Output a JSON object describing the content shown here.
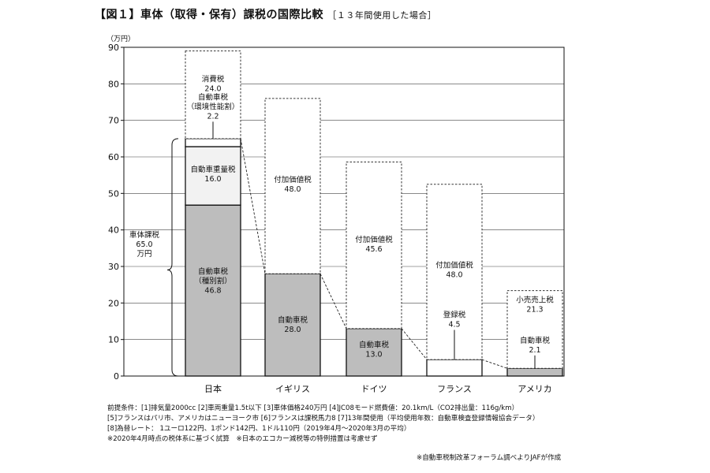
{
  "title": {
    "main": "【図１】車体（取得・保有）課税の国際比較",
    "sub": "［１３年間使用した場合］"
  },
  "chart_data": {
    "type": "bar",
    "stacked": true,
    "unit_label": "（万円）",
    "ylim": [
      0,
      90
    ],
    "yticks": [
      0,
      10,
      20,
      30,
      40,
      50,
      60,
      70,
      80,
      90
    ],
    "grid": true,
    "categories": [
      "日本",
      "イギリス",
      "ドイツ",
      "フランス",
      "アメリカ"
    ],
    "segments": [
      {
        "category": "日本",
        "name": [
          "自動車税",
          "（種別割）"
        ],
        "value": "46.8",
        "from": 0,
        "to": 46.8,
        "color": "#bdbdbd"
      },
      {
        "category": "日本",
        "name": [
          "自動車重量税"
        ],
        "value": "16.0",
        "from": 46.8,
        "to": 62.8,
        "color": "#f2f2f2"
      },
      {
        "category": "日本",
        "name": [
          "自動車税",
          "（環境性能割）"
        ],
        "value": "2.2",
        "from": 62.8,
        "to": 65.0,
        "color": "#ffffff"
      },
      {
        "category": "日本",
        "name": [
          "消費税"
        ],
        "value": "24.0",
        "from": 65.0,
        "to": 89.0,
        "color": "#ffffff",
        "dashed": true
      },
      {
        "category": "イギリス",
        "name": [
          "自動車税"
        ],
        "value": "28.0",
        "from": 0,
        "to": 28.0,
        "color": "#bdbdbd"
      },
      {
        "category": "イギリス",
        "name": [
          "付加価値税"
        ],
        "value": "48.0",
        "from": 28.0,
        "to": 76.0,
        "color": "#ffffff",
        "dashed": true
      },
      {
        "category": "ドイツ",
        "name": [
          "自動車税"
        ],
        "value": "13.0",
        "from": 0,
        "to": 13.0,
        "color": "#bdbdbd"
      },
      {
        "category": "ドイツ",
        "name": [
          "付加価値税"
        ],
        "value": "45.6",
        "from": 13.0,
        "to": 58.6,
        "color": "#ffffff",
        "dashed": true
      },
      {
        "category": "フランス",
        "name": [
          "登録税"
        ],
        "value": "4.5",
        "from": 0,
        "to": 4.5,
        "color": "#ffffff"
      },
      {
        "category": "フランス",
        "name": [
          "付加価値税"
        ],
        "value": "48.0",
        "from": 4.5,
        "to": 52.5,
        "color": "#ffffff",
        "dashed": true
      },
      {
        "category": "アメリカ",
        "name": [
          "自動車税"
        ],
        "value": "2.1",
        "from": 0,
        "to": 2.1,
        "color": "#bdbdbd"
      },
      {
        "category": "アメリカ",
        "name": [
          "小売売上税"
        ],
        "value": "21.3",
        "from": 2.1,
        "to": 23.4,
        "color": "#ffffff",
        "dashed": true
      }
    ],
    "annotations": [
      {
        "text": [
          "車体課税",
          "65.0",
          "万円"
        ],
        "category": "日本",
        "bracket_from": 0,
        "bracket_to": 65.0
      }
    ],
    "connector_levels": [
      65.0,
      28.0,
      13.0,
      4.5,
      2.1
    ]
  },
  "notes": [
    "前提条件：[1]排気量2000cc [2]車両重量1.5t以下 [3]車体価格240万円 [4]JC08モード燃費値：20.1km/L（CO2排出量：116g/km）",
    "[5]フランスはパリ市、アメリカはニューヨーク市 [6]フランスは課税馬力8 [7]13年間使用（平均使用年数：自動車検査登録情報協会データ）",
    "[8]為替レート： 1ユーロ122円、1ポンド142円、1ドル110円（2019年4月～2020年3月の平均）",
    "※2020年4月時点の税体系に基づく試算　※日本のエコカー減税等の特例措置は考慮せず"
  ],
  "source": "※自動車税制改革フォーラム調べよりJAFが作成"
}
